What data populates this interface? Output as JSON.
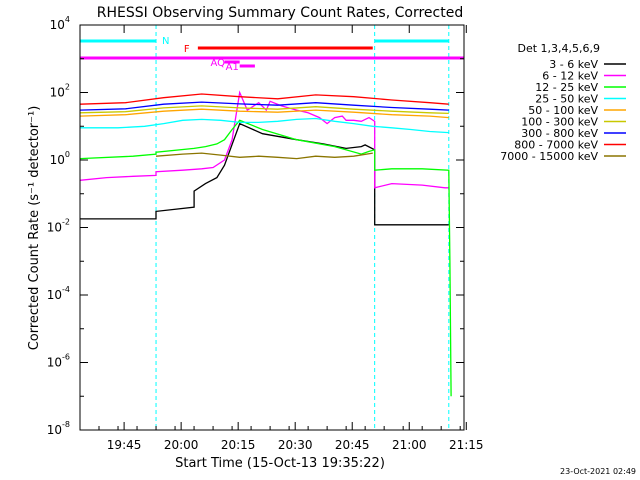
{
  "chart_data": {
    "type": "line",
    "title": "RHESSI Observing Summary Count Rates, Corrected",
    "xlabel": "Start Time (15-Oct-13 19:35:22)",
    "ylabel": "Corrected Count Rate (s⁻¹ detector⁻¹)",
    "y_scale": "log",
    "ylim": [
      1e-08,
      10000
    ],
    "xlim_minutes": [
      -2,
      99
    ],
    "x_ticks": [
      {
        "t": 9.6,
        "label": "19:45"
      },
      {
        "t": 24.6,
        "label": "20:00"
      },
      {
        "t": 39.6,
        "label": "20:15"
      },
      {
        "t": 54.6,
        "label": "20:30"
      },
      {
        "t": 69.6,
        "label": "20:45"
      },
      {
        "t": 84.6,
        "label": "21:00"
      },
      {
        "t": 99.6,
        "label": "21:15"
      }
    ],
    "y_ticks": [
      {
        "v": 10000,
        "mant": "10",
        "exp": "4"
      },
      {
        "v": 100,
        "mant": "10",
        "exp": "2"
      },
      {
        "v": 1,
        "mant": "10",
        "exp": "0"
      },
      {
        "v": 0.01,
        "mant": "10",
        "exp": "-2"
      },
      {
        "v": 0.0001,
        "mant": "10",
        "exp": "-4"
      },
      {
        "v": 1e-06,
        "mant": "10",
        "exp": "-6"
      },
      {
        "v": 1e-08,
        "mant": "10",
        "exp": "-8"
      }
    ],
    "legend_title": "Det 1,3,4,5,6,9",
    "legend_position": "top-right, outside plot",
    "series": [
      {
        "name": "3 - 6 keV",
        "color": "#000000",
        "x": [
          -2,
          18,
          18,
          28,
          28,
          31,
          34,
          36,
          40,
          46,
          55,
          62,
          68,
          72,
          73,
          75.5,
          75.5,
          79,
          84,
          90,
          95
        ],
        "y": [
          0.018,
          0.018,
          0.03,
          0.04,
          0.12,
          0.2,
          0.3,
          0.7,
          12,
          6,
          4,
          3,
          2.2,
          2.5,
          2.8,
          2,
          0.012,
          0.012,
          0.012,
          0.012,
          0.012
        ]
      },
      {
        "name": "6 - 12 keV",
        "color": "#ff00ff",
        "x": [
          -2,
          5,
          12,
          18,
          18,
          25,
          30,
          33,
          36,
          38,
          40,
          42,
          45,
          47,
          48,
          51,
          55,
          58,
          61,
          63,
          65,
          67,
          68,
          70,
          72,
          74,
          75.5,
          75.5,
          80,
          88,
          94,
          95
        ],
        "y": [
          0.25,
          0.3,
          0.33,
          0.35,
          0.45,
          0.5,
          0.55,
          0.6,
          1.0,
          4,
          100,
          30,
          50,
          30,
          55,
          40,
          30,
          25,
          18,
          12,
          18,
          20,
          15,
          15,
          14,
          18,
          14,
          0.15,
          0.2,
          0.18,
          0.15,
          0.15
        ]
      },
      {
        "name": "12 - 25 keV",
        "color": "#00ff00",
        "x": [
          -2,
          12,
          18,
          18,
          28,
          31,
          34,
          36,
          38,
          40,
          46,
          55,
          65,
          72,
          74,
          75.5,
          75.5,
          80,
          88,
          95,
          95.3,
          95.6
        ],
        "y": [
          1.1,
          1.3,
          1.5,
          1.7,
          2.2,
          2.5,
          3,
          4,
          8,
          15,
          8,
          4,
          2.5,
          1.5,
          1.8,
          2,
          0.5,
          0.55,
          0.55,
          0.5,
          0.001,
          1e-07
        ]
      },
      {
        "name": "25 - 50 keV",
        "color": "#00ffff",
        "x": [
          -2,
          8,
          15,
          20,
          25,
          30,
          35,
          40,
          45,
          50,
          55,
          60,
          65,
          70,
          75,
          80,
          85,
          90,
          95
        ],
        "y": [
          9,
          9,
          10,
          12,
          15,
          16,
          15,
          13,
          13,
          14,
          16,
          17,
          14,
          12,
          10,
          9,
          8,
          7,
          6.5
        ]
      },
      {
        "name": "50 - 100 keV",
        "color": "#ffa500",
        "x": [
          -2,
          10,
          20,
          30,
          40,
          50,
          60,
          70,
          80,
          90,
          95
        ],
        "y": [
          20,
          22,
          28,
          32,
          28,
          26,
          30,
          26,
          22,
          20,
          18
        ]
      },
      {
        "name": "100 - 300 keV",
        "color": "#c8c800",
        "x": [
          -2,
          10,
          20,
          30,
          40,
          50,
          60,
          70,
          80,
          90,
          95
        ],
        "y": [
          25,
          27,
          35,
          40,
          35,
          32,
          38,
          32,
          28,
          25,
          24
        ]
      },
      {
        "name": "300 - 800 keV",
        "color": "#0000ff",
        "x": [
          -2,
          10,
          20,
          30,
          40,
          50,
          60,
          70,
          80,
          90,
          95
        ],
        "y": [
          30,
          33,
          45,
          52,
          46,
          42,
          50,
          42,
          36,
          32,
          30
        ]
      },
      {
        "name": "800 - 7000 keV",
        "color": "#ff0000",
        "x": [
          -2,
          10,
          20,
          30,
          40,
          50,
          60,
          70,
          80,
          90,
          95
        ],
        "y": [
          45,
          50,
          70,
          90,
          75,
          65,
          85,
          75,
          60,
          50,
          45
        ]
      },
      {
        "name": "7000 - 15000 keV",
        "color": "#8b7500",
        "x": [
          18,
          25,
          30,
          35,
          40,
          45,
          50,
          55,
          60,
          65,
          70,
          75
        ],
        "y": [
          1.3,
          1.5,
          1.6,
          1.4,
          1.2,
          1.3,
          1.2,
          1.1,
          1.3,
          1.2,
          1.3,
          1.6
        ]
      }
    ],
    "night_intervals": [
      {
        "label": "N",
        "start": -2,
        "end": 18
      },
      {
        "label": "",
        "start": 75.5,
        "end": 95
      }
    ],
    "flags": [
      {
        "label": "F",
        "color": "#ff0000",
        "start": 29,
        "end": 75
      },
      {
        "label": "AQ",
        "color": "#ff00ff",
        "start": 36,
        "end": 40
      },
      {
        "label": "A1",
        "color": "#ff00ff",
        "start": 40,
        "end": 44
      }
    ],
    "footer_date": "23-Oct-2021 02:49"
  }
}
